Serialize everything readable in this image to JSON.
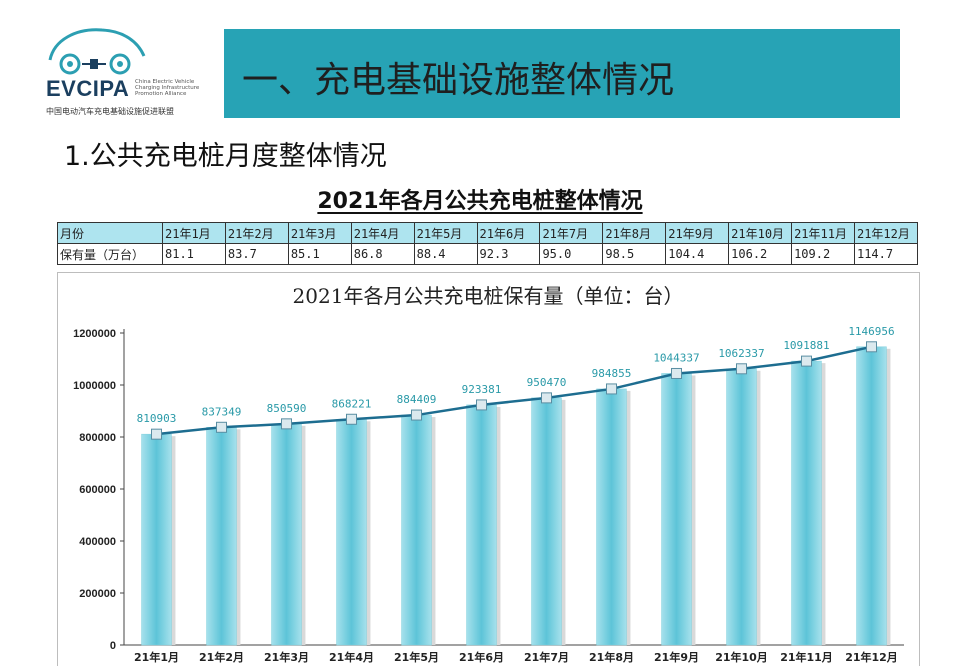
{
  "logo": {
    "name": "EVCIPA",
    "english": "China Electric Vehicle Charging Infrastructure Promotion Alliance",
    "chinese": "中国电动汽车充电基础设施促进联盟"
  },
  "banner": {
    "title": "一、充电基础设施整体情况"
  },
  "section": {
    "title": "1.公共充电桩月度整体情况"
  },
  "table": {
    "title": "2021年各月公共充电桩整体情况",
    "header_label": "月份",
    "row_label": "保有量（万台）",
    "months": [
      "21年1月",
      "21年2月",
      "21年3月",
      "21年4月",
      "21年5月",
      "21年6月",
      "21年7月",
      "21年8月",
      "21年9月",
      "21年10月",
      "21年11月",
      "21年12月"
    ],
    "values": [
      "81.1",
      "83.7",
      "85.1",
      "86.8",
      "88.4",
      "92.3",
      "95.0",
      "98.5",
      "104.4",
      "106.2",
      "109.2",
      "114.7"
    ]
  },
  "chart_data": {
    "type": "bar",
    "title": "2021年各月公共充电桩保有量（单位：台）",
    "categories": [
      "21年1月",
      "21年2月",
      "21年3月",
      "21年4月",
      "21年5月",
      "21年6月",
      "21年7月",
      "21年8月",
      "21年9月",
      "21年10月",
      "21年11月",
      "21年12月"
    ],
    "series": [
      {
        "values": [
          810903,
          837349,
          850590,
          868221,
          884409,
          923381,
          950470,
          984855,
          1044337,
          1062337,
          1091881,
          1146956
        ]
      }
    ],
    "overlay_line": true,
    "ylim": [
      0,
      1200000
    ],
    "yticks": [
      "0",
      "200000",
      "400000",
      "600000",
      "800000",
      "1000000",
      "1200000"
    ],
    "grid": false,
    "colors": {
      "bar": "#5dc4d8",
      "bar_light": "#a6e1ec",
      "line": "#1d6d90",
      "label": "#2a9aa8"
    }
  }
}
